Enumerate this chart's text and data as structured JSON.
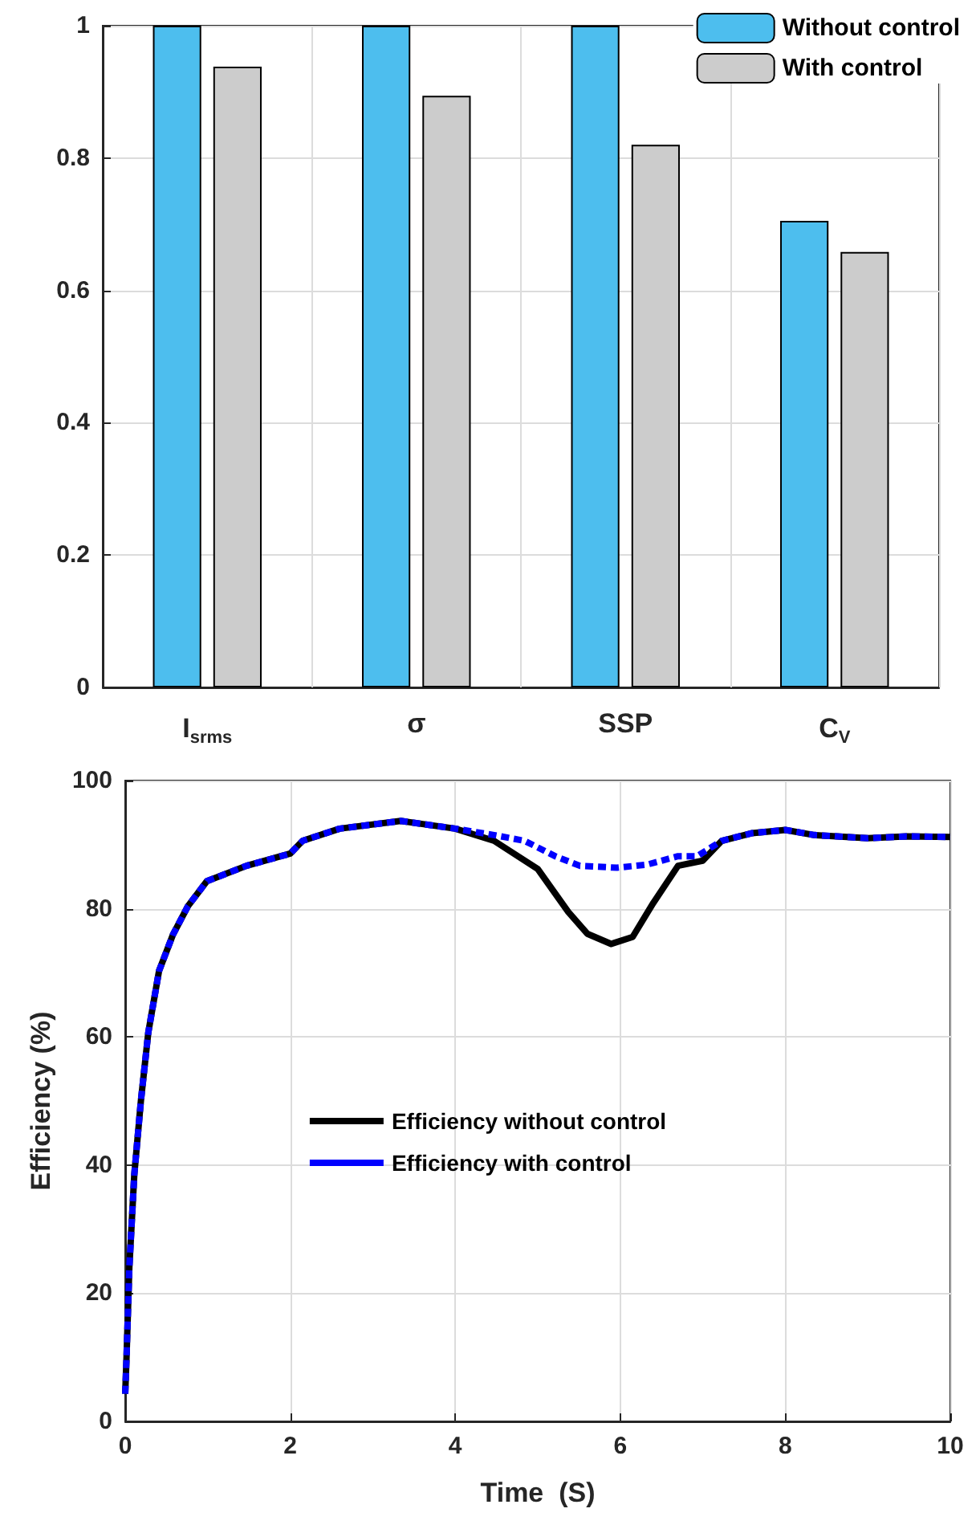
{
  "chart_data": [
    {
      "type": "bar",
      "categories": [
        "I$_{srms}$",
        "σ",
        "SSP",
        "C$_{V}$"
      ],
      "series": [
        {
          "name": "Without control",
          "color": "#4dbeee",
          "values": [
            1,
            1,
            1,
            0.705
          ]
        },
        {
          "name": "With control",
          "color": "#cccccc",
          "values": [
            0.938,
            0.894,
            0.82,
            0.658
          ]
        }
      ],
      "ylim": [
        0,
        1
      ],
      "yticks": [
        0,
        0.2,
        0.4,
        0.6,
        0.8,
        1
      ],
      "grid": true,
      "legend": "top right"
    },
    {
      "type": "line",
      "xlabel": "Time  (S)",
      "ylabel": "Efficiency (%)",
      "series": [
        {
          "name": "Efficiency without control",
          "color": "#000000",
          "line_style": "solid",
          "x": [
            0,
            0.015,
            0.05,
            0.11,
            0.19,
            0.28,
            0.41,
            0.58,
            0.76,
            0.99,
            1.47,
            2.0,
            2.15,
            2.6,
            3.34,
            4.0,
            4.47,
            5.0,
            5.37,
            5.6,
            5.89,
            6.15,
            6.4,
            6.7,
            7.0,
            7.23,
            7.6,
            8.0,
            8.35,
            9.0,
            9.47,
            10
          ],
          "values": [
            4.3,
            9.6,
            24,
            38.5,
            50,
            60.7,
            70.3,
            76,
            80.4,
            84.3,
            86.7,
            88.6,
            90.6,
            92.5,
            93.7,
            92.5,
            90.6,
            86.2,
            79.5,
            76.1,
            74.5,
            75.6,
            80.9,
            86.7,
            87.5,
            90.6,
            91.8,
            92.3,
            91.5,
            91.0,
            91.3,
            91.2
          ]
        },
        {
          "name": "Efficiency with control",
          "color": "#0000ff",
          "line_style": "dashed",
          "x": [
            0,
            0.015,
            0.05,
            0.11,
            0.19,
            0.28,
            0.41,
            0.58,
            0.76,
            0.99,
            1.47,
            2.0,
            2.15,
            2.6,
            3.34,
            4.0,
            4.47,
            4.84,
            5.21,
            5.51,
            5.96,
            6.33,
            6.7,
            6.93,
            7.23,
            7.6,
            8.0,
            8.35,
            9.0,
            9.47,
            10
          ],
          "values": [
            4.3,
            9.6,
            24,
            38.5,
            50,
            60.7,
            70.3,
            76,
            80.4,
            84.3,
            86.7,
            88.6,
            90.6,
            92.5,
            93.7,
            92.5,
            91.5,
            90.6,
            88.2,
            86.7,
            86.4,
            86.9,
            88.2,
            88.2,
            90.6,
            91.8,
            92.3,
            91.5,
            91.0,
            91.3,
            91.2
          ]
        }
      ],
      "xlim": [
        0,
        10
      ],
      "xticks": [
        0,
        2,
        4,
        6,
        8,
        10
      ],
      "ylim": [
        0,
        100
      ],
      "yticks": [
        0,
        20,
        40,
        60,
        80,
        100
      ],
      "grid": true,
      "legend": "center"
    }
  ]
}
